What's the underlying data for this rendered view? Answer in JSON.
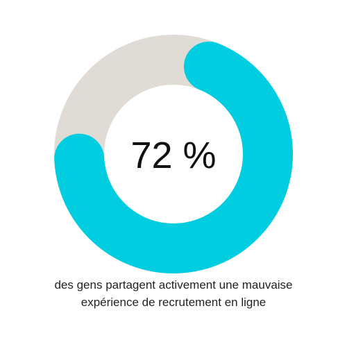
{
  "chart_data": {
    "type": "pie",
    "variant": "donut",
    "center_label": "72 %",
    "values": [
      72,
      28
    ],
    "colors": [
      "#00cde0",
      "#e1dbd6"
    ],
    "start": "top-right",
    "direction": "clockwise"
  },
  "caption": "des gens partagent activement une mauvaise expérience de recrutement en ligne"
}
